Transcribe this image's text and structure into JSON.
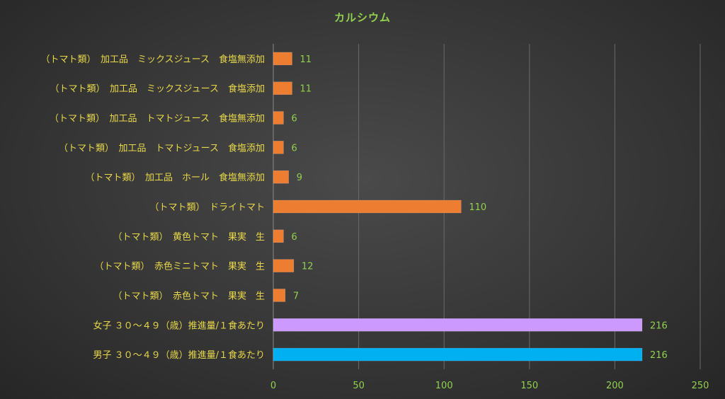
{
  "chart_data": {
    "type": "bar",
    "orientation": "horizontal",
    "title": "カルシウム",
    "categories": [
      "（トマト類）　加工品　ミックスジュース　食塩無添加",
      "（トマト類）　加工品　ミックスジュース　食塩添加",
      "（トマト類）　加工品　トマトジュース　食塩無添加",
      "（トマト類）　加工品　トマトジュース　食塩添加",
      "（トマト類）　加工品　ホール　食塩無添加",
      "（トマト類）　ドライトマト",
      "（トマト類）　黄色トマト　果実　生",
      "（トマト類）　赤色ミニトマト　果実　生",
      "（トマト類）　赤色トマト　果実　生",
      "女子 ３０～４９（歳）推進量/１食あたり",
      "男子 ３０～４９（歳）推進量/１食あたり"
    ],
    "values": [
      11,
      11,
      6,
      6,
      9,
      110,
      6,
      12,
      7,
      216,
      216
    ],
    "value_labels": [
      "11",
      "11",
      "6",
      "6",
      "9",
      "110",
      "6",
      "12",
      "7",
      "216",
      "216"
    ],
    "bar_colors": [
      "#ed7d31",
      "#ed7d31",
      "#ed7d31",
      "#ed7d31",
      "#ed7d31",
      "#ed7d31",
      "#ed7d31",
      "#ed7d31",
      "#ed7d31",
      "#cc99ff",
      "#00b0f0"
    ],
    "xlim": [
      0,
      250
    ],
    "xticks": [
      0,
      50,
      100,
      150,
      200,
      250
    ],
    "xtick_labels": [
      "0",
      "50",
      "100",
      "150",
      "200",
      "250"
    ],
    "grid": "vertical",
    "legend": "none"
  },
  "colors": {
    "title": "#92d050",
    "category_text": "#e8d84a",
    "value_text": "#92d050",
    "gridline": "#6a6a6a"
  }
}
